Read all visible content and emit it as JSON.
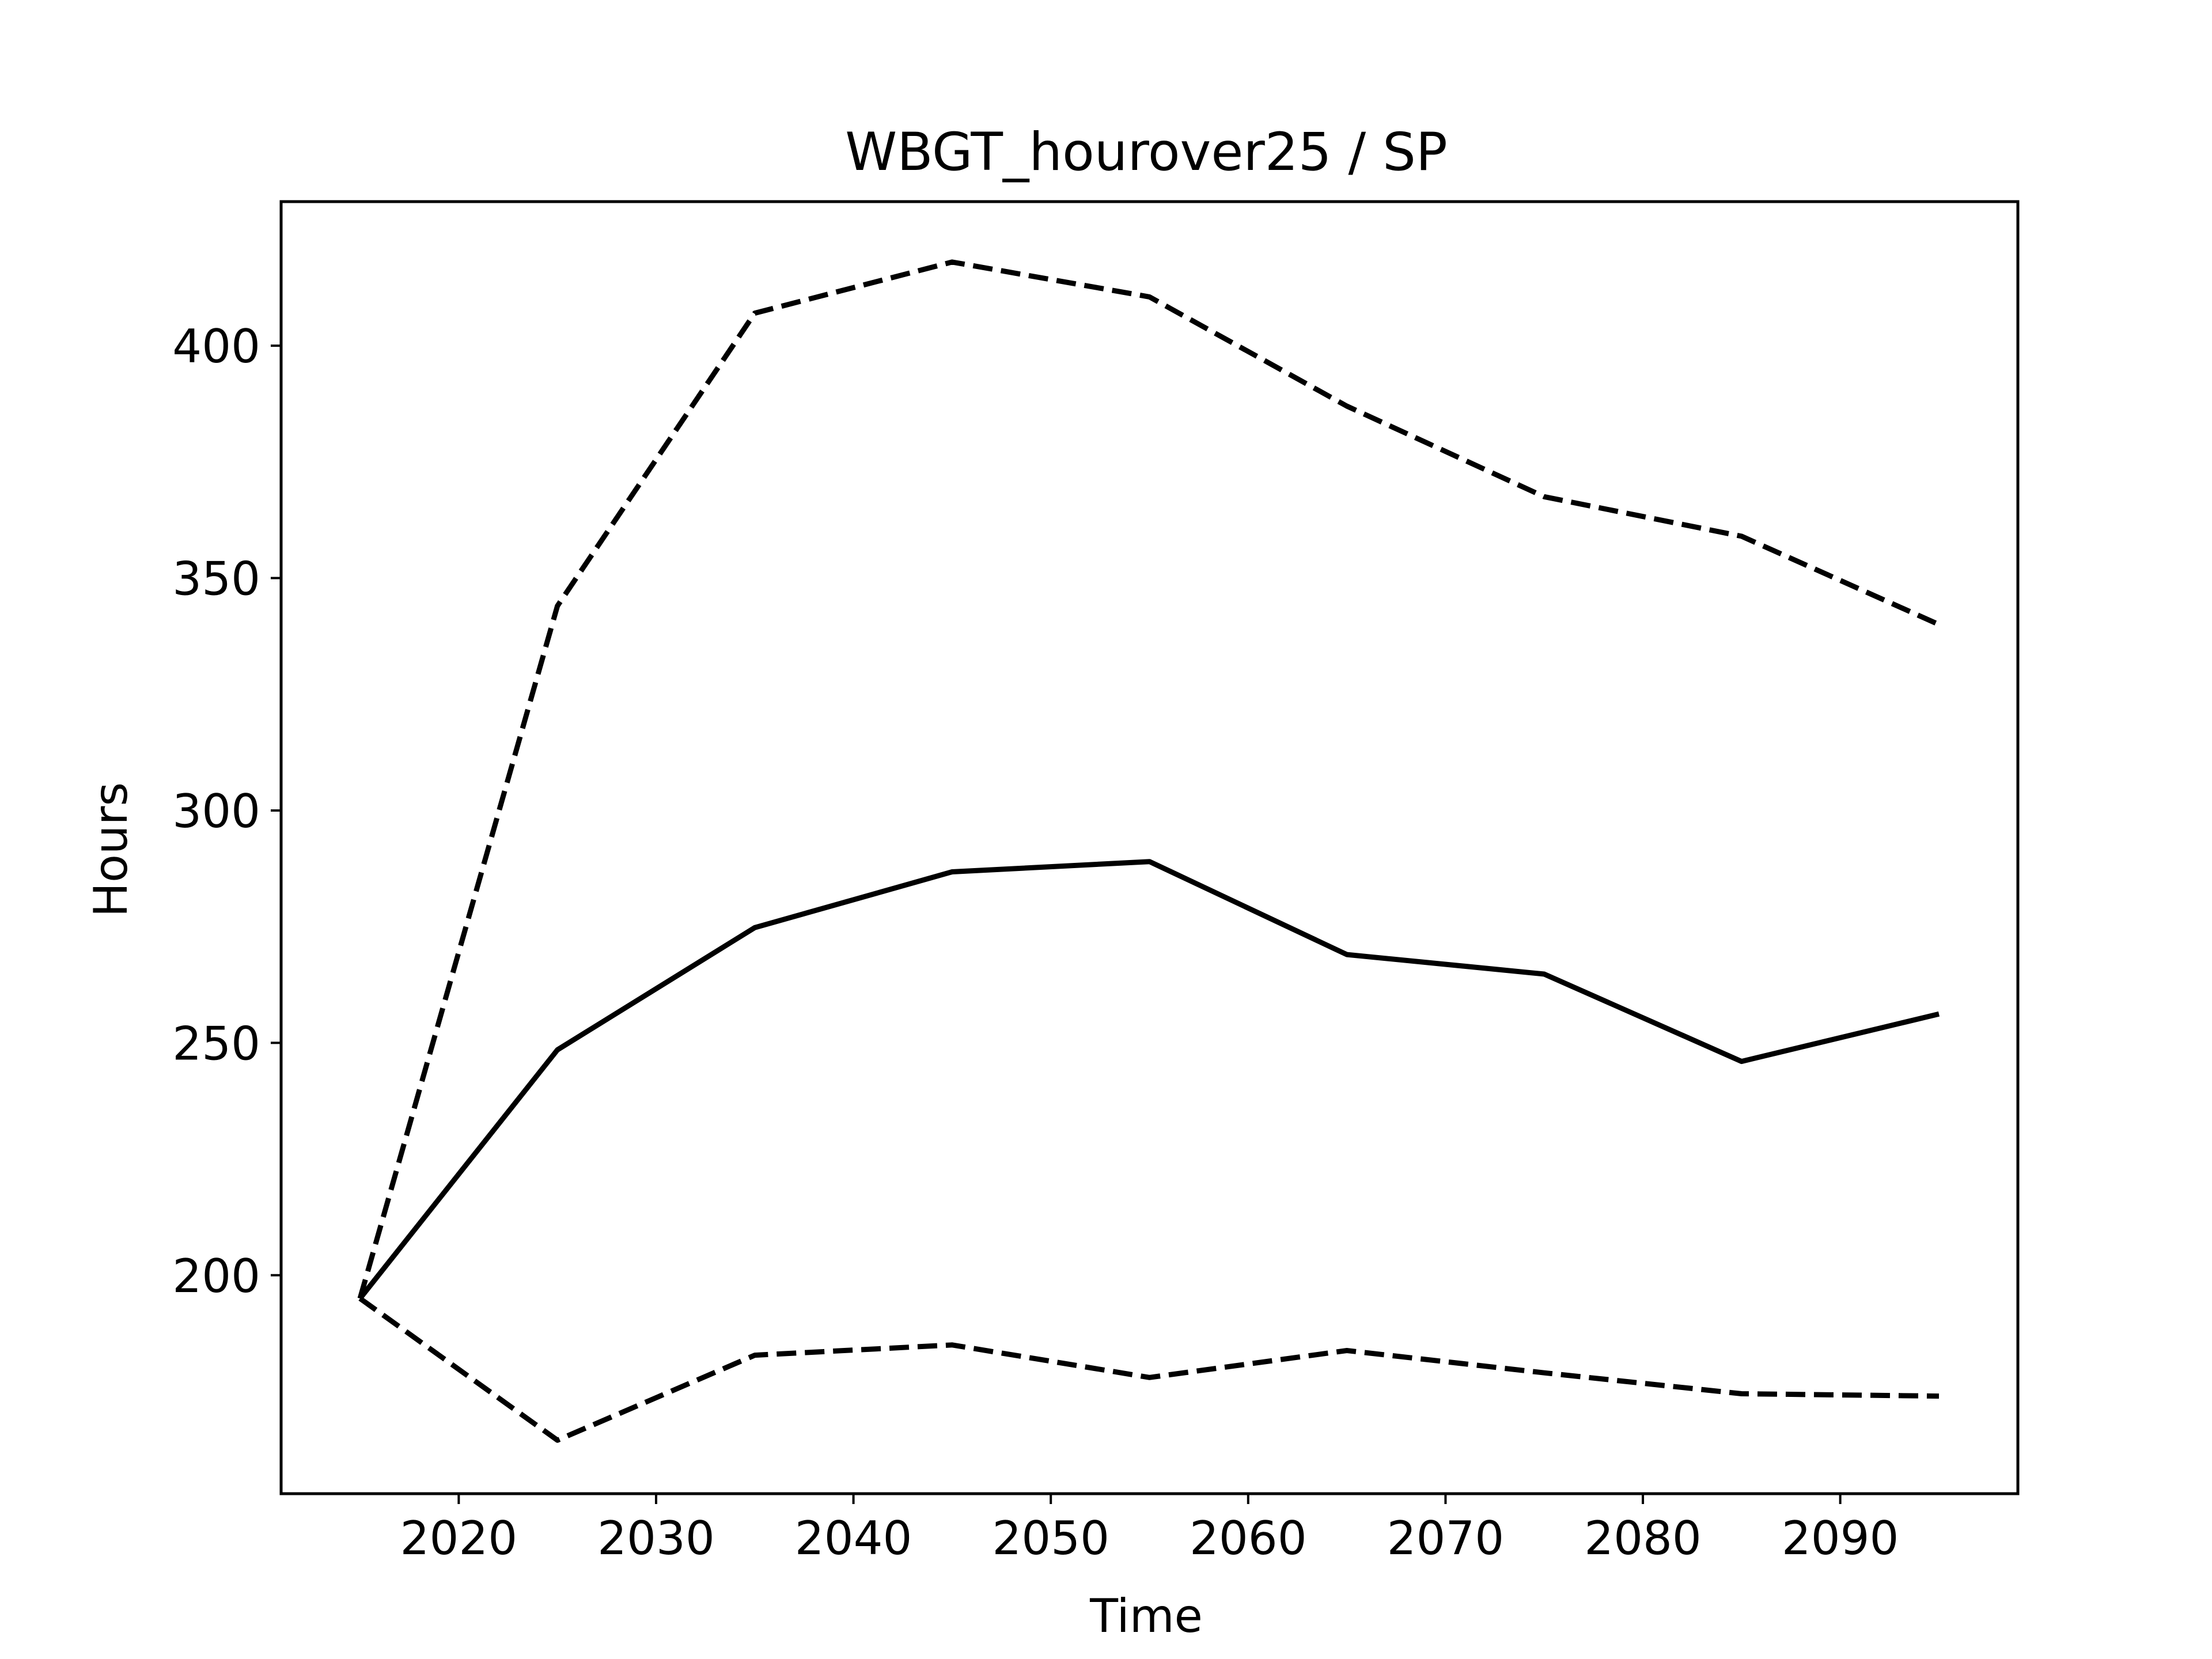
{
  "chart_data": {
    "type": "line",
    "title": "WBGT_hourover25 / SP",
    "xlabel": "Time",
    "ylabel": "Hours",
    "xlim": [
      2011,
      2099
    ],
    "ylim": [
      153,
      431
    ],
    "xticks": [
      2020,
      2030,
      2040,
      2050,
      2060,
      2070,
      2080,
      2090
    ],
    "yticks": [
      200,
      250,
      300,
      350,
      400
    ],
    "grid": false,
    "legend": "none",
    "x": [
      2015,
      2025,
      2035,
      2045,
      2055,
      2065,
      2075,
      2085,
      2095
    ],
    "series": [
      {
        "style": "solid",
        "color": "#000000",
        "values": [
          195,
          248.5,
          274.8,
          286.8,
          289,
          269,
          264.8,
          246,
          256.2
        ]
      },
      {
        "style": "dashed",
        "color": "#000000",
        "values": [
          195,
          344,
          407,
          418,
          410.5,
          387,
          367.5,
          359,
          340
        ]
      },
      {
        "style": "dashed",
        "color": "#000000",
        "values": [
          195,
          164.5,
          182.8,
          185,
          178,
          183.8,
          179,
          174.5,
          174
        ]
      }
    ]
  }
}
